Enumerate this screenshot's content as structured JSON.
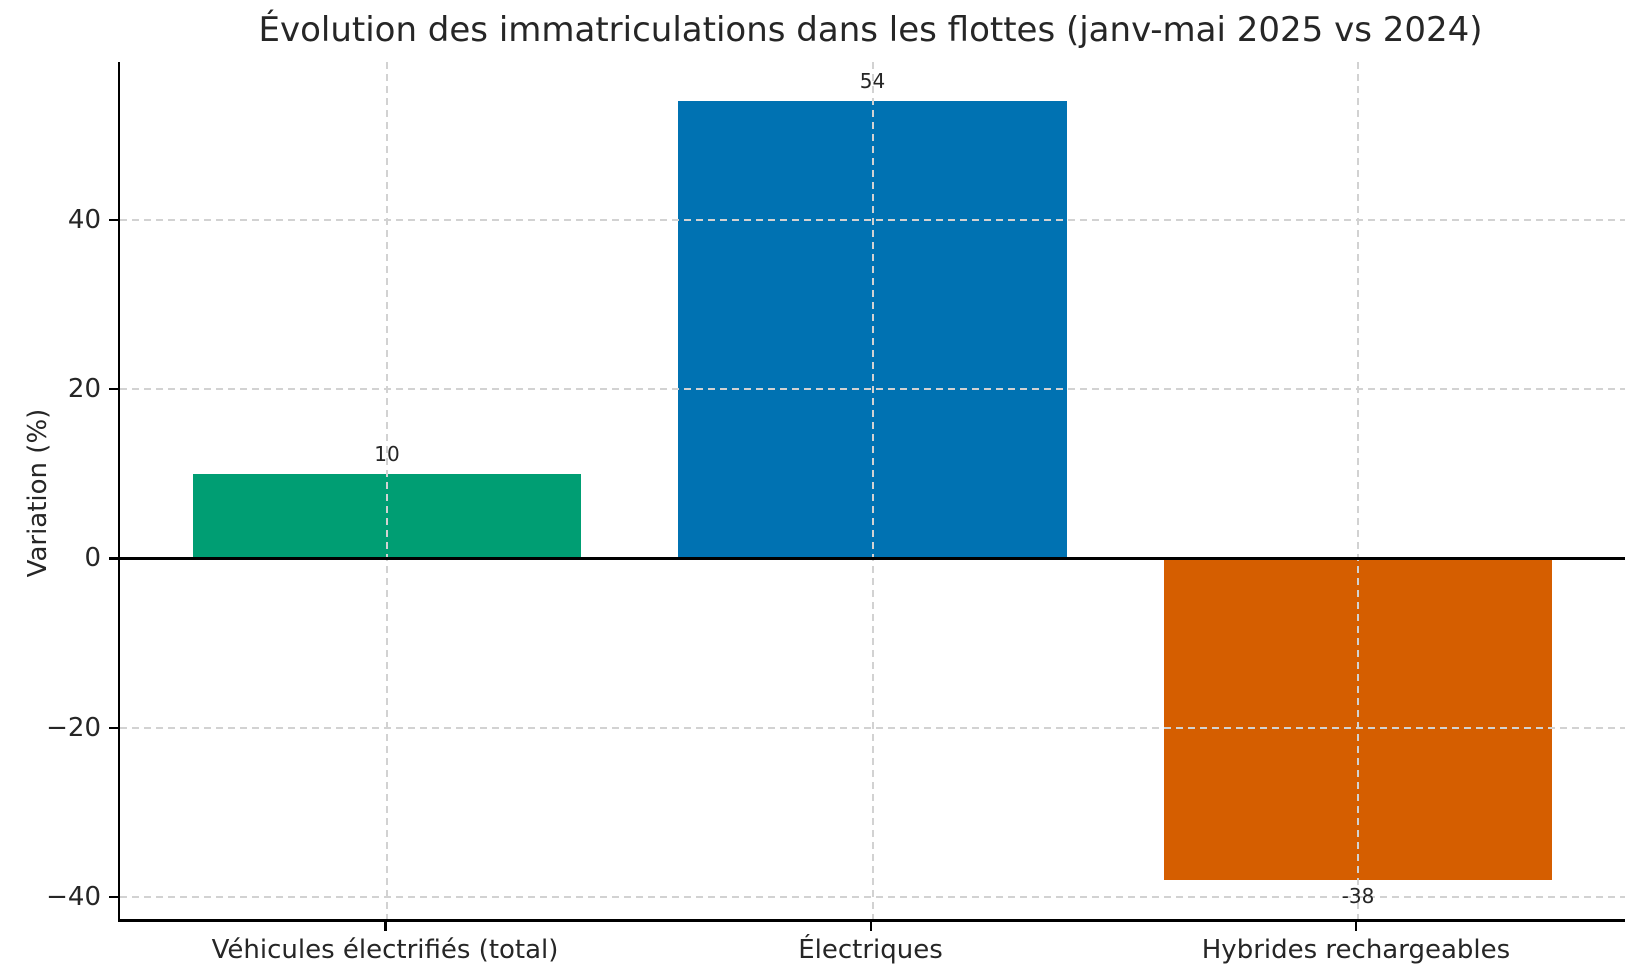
{
  "chart_data": {
    "type": "bar",
    "title": "Évolution des immatriculations dans les flottes (janv-mai 2025 vs 2024)",
    "ylabel": "Variation (%)",
    "xlabel": "",
    "categories": [
      "Véhicules électrifiés (total)",
      "Électriques",
      "Hybrides rechargeables"
    ],
    "values": [
      10,
      54,
      -38
    ],
    "value_labels": [
      "10",
      "54",
      "-38"
    ],
    "bar_colors": [
      "#009E73",
      "#0072B2",
      "#D55E00"
    ],
    "yticks": [
      -40,
      -20,
      0,
      20,
      40
    ],
    "ytick_labels": [
      "−40",
      "−20",
      "0",
      "20",
      "40"
    ],
    "ylim": [
      -42.6,
      58.6
    ],
    "xlim": [
      -0.55,
      2.55
    ],
    "bar_width": 0.8,
    "grid": true,
    "legend": "none",
    "zero_line": true,
    "colors": {
      "text": "#262626",
      "spine": "#000000",
      "grid": "#d2d2d2",
      "background": "#ffffff"
    }
  }
}
